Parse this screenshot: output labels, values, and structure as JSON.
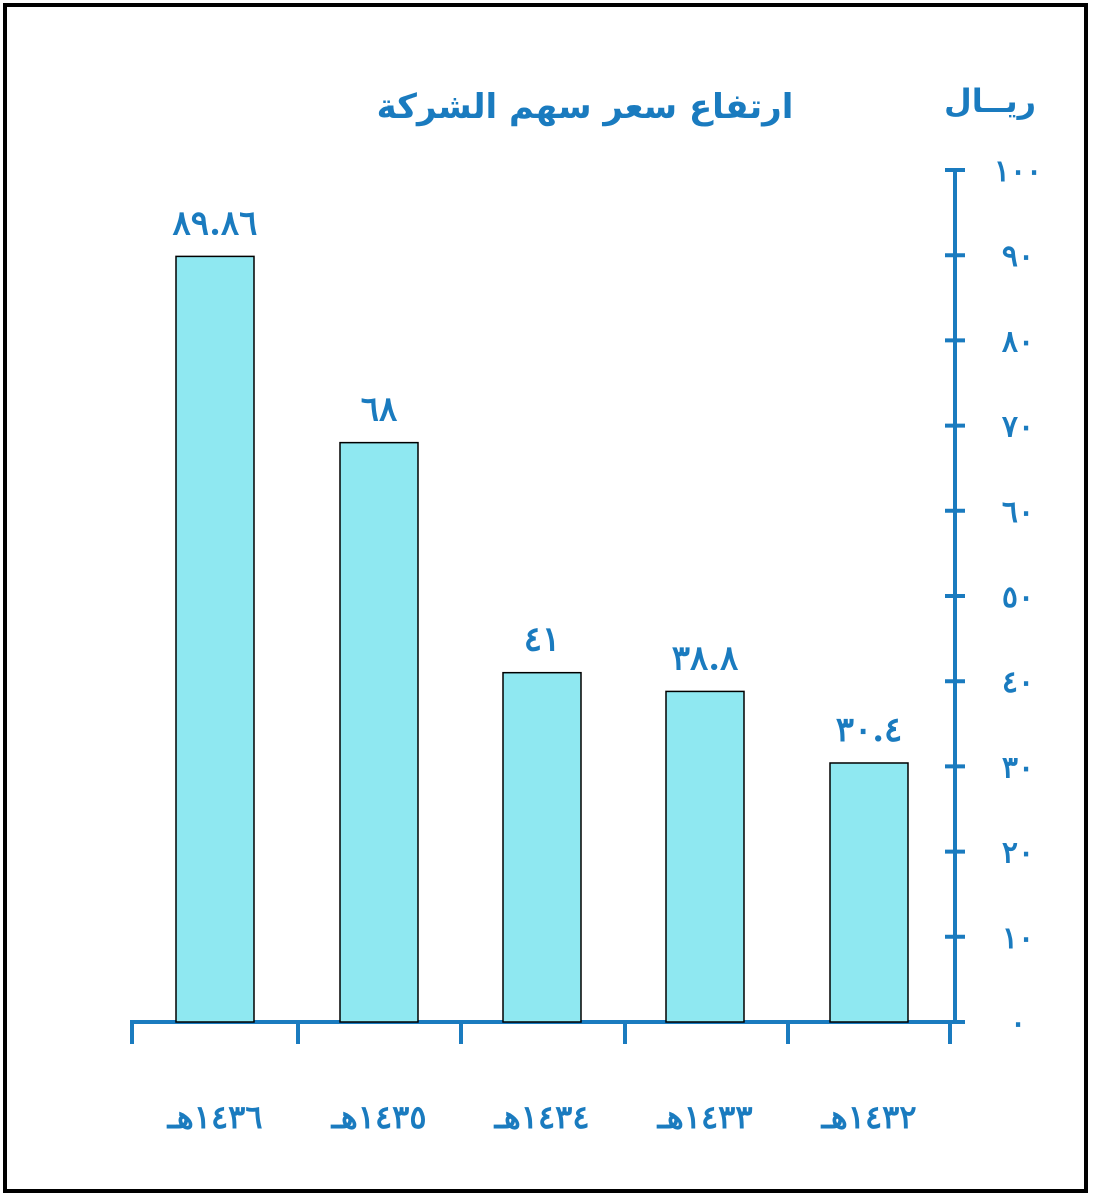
{
  "chart_data": {
    "type": "bar",
    "title": "ارتفاع سعر سهم الشركة",
    "ylabel": "ريــال",
    "ylim": [
      0,
      100
    ],
    "y_ticks": [
      {
        "value": 0,
        "label": "٠"
      },
      {
        "value": 10,
        "label": "١٠"
      },
      {
        "value": 20,
        "label": "٢٠"
      },
      {
        "value": 30,
        "label": "٣٠"
      },
      {
        "value": 40,
        "label": "٤٠"
      },
      {
        "value": 50,
        "label": "٥٠"
      },
      {
        "value": 60,
        "label": "٦٠"
      },
      {
        "value": 70,
        "label": "٧٠"
      },
      {
        "value": 80,
        "label": "٨٠"
      },
      {
        "value": 90,
        "label": "٩٠"
      },
      {
        "value": 100,
        "label": "١٠٠"
      }
    ],
    "categories": [
      "١٤٣٦هـ",
      "١٤٣٥هـ",
      "١٤٣٤هـ",
      "١٤٣٣هـ",
      "١٤٣٢هـ"
    ],
    "values": [
      89.86,
      68,
      41,
      38.8,
      30.4
    ],
    "value_labels": [
      "٨٩.٨٦",
      "٦٨",
      "٤١",
      "٣٨.٨",
      "٣٠.٤"
    ],
    "grid": false,
    "axis_position": "right",
    "colors": {
      "bar": "#8fe8f1",
      "axis": "#1a7bbf",
      "text": "#1a7bbf",
      "bar_border": "#000000"
    }
  }
}
